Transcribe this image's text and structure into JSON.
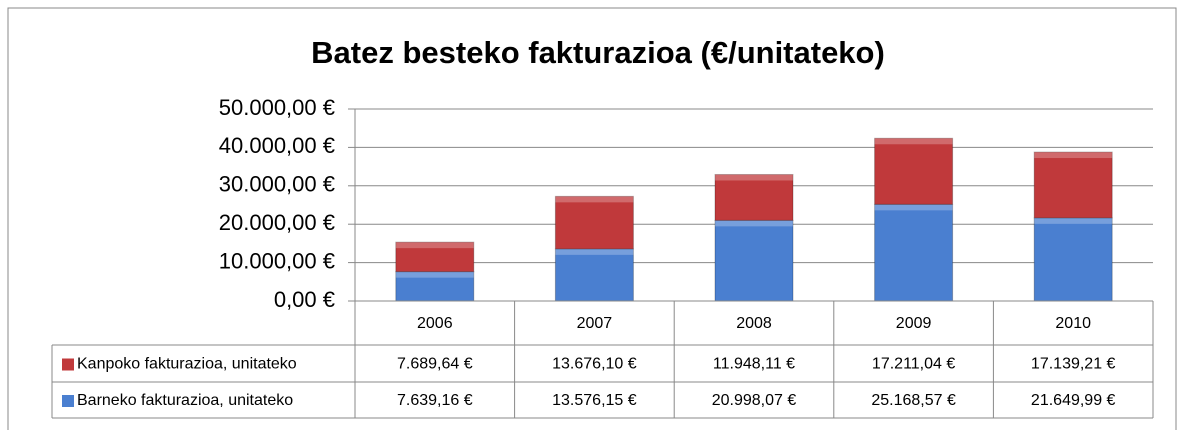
{
  "chart_data": {
    "type": "bar",
    "stacked": true,
    "title": "Batez besteko fakturazioa (€/unitateko)",
    "categories": [
      "2006",
      "2007",
      "2008",
      "2009",
      "2010"
    ],
    "series": [
      {
        "name": "Kanpoko fakturazioa, unitateko",
        "color": "#c0393b",
        "values": [
          7689.64,
          13676.1,
          11948.11,
          17211.04,
          17139.21
        ],
        "value_labels": [
          "7.689,64 €",
          "13.676,10 €",
          "11.948,11 €",
          "17.211,04 €",
          "17.139,21 €"
        ]
      },
      {
        "name": "Barneko fakturazioa, unitateko",
        "color": "#4a7fd0",
        "values": [
          7639.16,
          13576.15,
          20998.07,
          25168.57,
          21649.99
        ],
        "value_labels": [
          "7.639,16 €",
          "13.576,15 €",
          "20.998,07 €",
          "25.168,57 €",
          "21.649,99 €"
        ]
      }
    ],
    "ylim": [
      0,
      50000
    ],
    "yticks": [
      {
        "value": 0,
        "label": "0,00 €"
      },
      {
        "value": 10000,
        "label": "10.000,00 €"
      },
      {
        "value": 20000,
        "label": "20.000,00 €"
      },
      {
        "value": 30000,
        "label": "30.000,00 €"
      },
      {
        "value": 40000,
        "label": "40.000,00 €"
      },
      {
        "value": 50000,
        "label": "50.000,00 €"
      }
    ],
    "grid": true
  }
}
